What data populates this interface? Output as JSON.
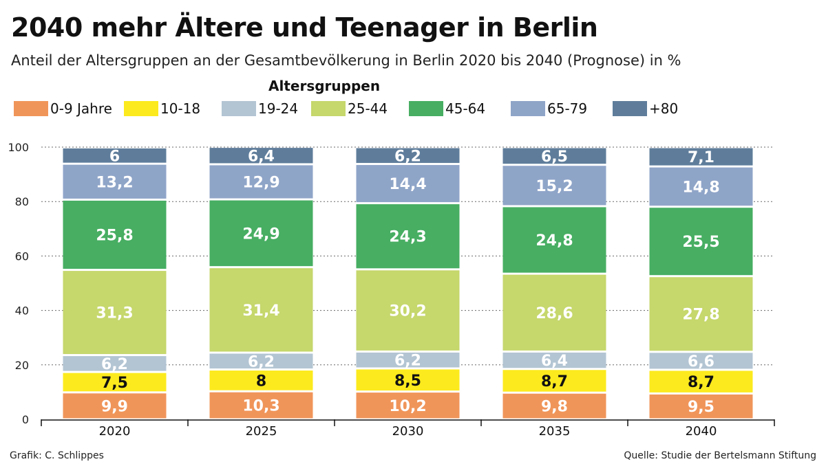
{
  "title": "2040 mehr Ältere und Teenager in Berlin",
  "subtitle": "Anteil der Altersgruppen an der Gesamtbevölkerung in Berlin 2020 bis 2040 (Prognose) in %",
  "footer": {
    "credit": "Grafik: C. Schlippes",
    "source": "Quelle: Studie der Bertelsmann Stiftung"
  },
  "chart_data": {
    "type": "bar",
    "stacked": true,
    "legend_title": "Altersgruppen",
    "legend_placement": "top",
    "categories": [
      "2020",
      "2025",
      "2030",
      "2035",
      "2040"
    ],
    "ylim": [
      0,
      100
    ],
    "yticks": [
      0,
      20,
      40,
      60,
      80,
      100
    ],
    "grid": true,
    "series": [
      {
        "name": "0-9 Jahre",
        "color": "#F0955A",
        "values": [
          9.9,
          10.3,
          10.2,
          9.8,
          9.5
        ],
        "labels": [
          "9,9",
          "10,3",
          "10,2",
          "9,8",
          "9,5"
        ]
      },
      {
        "name": "10-18",
        "color": "#FCEA1E",
        "values": [
          7.5,
          8,
          8.5,
          8.7,
          8.7
        ],
        "labels": [
          "7,5",
          "8",
          "8,5",
          "8,7",
          "8,7"
        ]
      },
      {
        "name": "19-24",
        "color": "#B3C5D3",
        "values": [
          6.2,
          6.2,
          6.2,
          6.4,
          6.6
        ],
        "labels": [
          "6,2",
          "6,2",
          "6,2",
          "6,4",
          "6,6"
        ]
      },
      {
        "name": "25-44",
        "color": "#C6D76C",
        "values": [
          31.3,
          31.4,
          30.2,
          28.6,
          27.8
        ],
        "labels": [
          "31,3",
          "31,4",
          "30,2",
          "28,6",
          "27,8"
        ]
      },
      {
        "name": "45-64",
        "color": "#47AE62",
        "values": [
          25.8,
          24.9,
          24.3,
          24.8,
          25.5
        ],
        "labels": [
          "25,8",
          "24,9",
          "24,3",
          "24,8",
          "25,5"
        ]
      },
      {
        "name": "65-79",
        "color": "#8FA5C8",
        "values": [
          13.2,
          12.9,
          14.4,
          15.2,
          14.8
        ],
        "labels": [
          "13,2",
          "12,9",
          "14,4",
          "15,2",
          "14,8"
        ]
      },
      {
        "name": "+80",
        "color": "#5F7D9B",
        "values": [
          6,
          6.4,
          6.2,
          6.5,
          7.1
        ],
        "labels": [
          "6",
          "6,4",
          "6,2",
          "6,5",
          "7,1"
        ]
      }
    ]
  }
}
